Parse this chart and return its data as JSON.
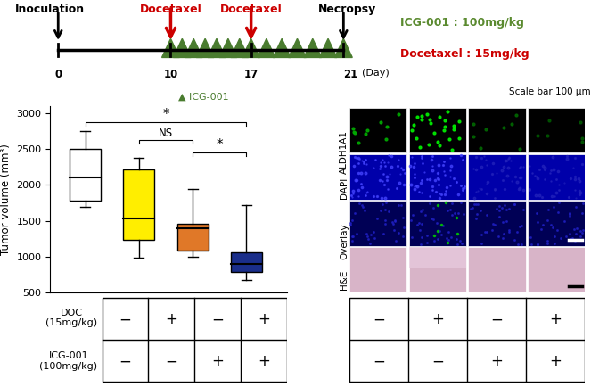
{
  "timeline": {
    "inoculation_label": "Inoculation",
    "necropsy_label": "Necropsy",
    "docetaxel_label": "Docetaxel",
    "icg_label": "ICG-001",
    "triangle_color": "#4a7c2f",
    "docetaxel_color": "#cc0000"
  },
  "legend": {
    "icg_text": "ICG-001 : 100mg/kg",
    "doc_text": "Docetaxel : 15mg/kg",
    "icg_color": "#5a8a2f",
    "doc_color": "#cc0000"
  },
  "boxplot": {
    "colors": [
      "#ffffff",
      "#ffee00",
      "#e07828",
      "#1a2e8a"
    ],
    "edge_color": "#000000",
    "medians": [
      2100,
      1530,
      1400,
      900
    ],
    "q1": [
      1780,
      1230,
      1080,
      780
    ],
    "q3": [
      2500,
      2220,
      1460,
      1060
    ],
    "whisker_lo": [
      1690,
      980,
      1000,
      670
    ],
    "whisker_hi": [
      2750,
      2380,
      1940,
      1720
    ],
    "ylabel": "Tumor volume (mm³)",
    "ylim": [
      500,
      3100
    ],
    "yticks": [
      500,
      1000,
      1500,
      2000,
      2500,
      3000
    ],
    "doc_labels": [
      "−",
      "+",
      "−",
      "+"
    ],
    "icg_labels": [
      "−",
      "−",
      "+",
      "+"
    ],
    "doc_row_label": "DOC\n(15mg/kg)",
    "icg_row_label": "ICG-001\n(100mg/kg)"
  },
  "microscopy": {
    "row_labels": [
      "ALDH1A1",
      "DAPI",
      "Overlay",
      "H&E"
    ],
    "scale_bar_text": "Scale bar 100 μm",
    "aldh1a1_bg": "#000000",
    "dapi_bg": "#0000aa",
    "overlay_bg": "#000055",
    "he_bg": "#d8b4c8",
    "aldh1a1_dots_col1": "#00dd00",
    "aldh1a1_dots_col0": "#005500",
    "aldh1a1_dots_col2": "#004400",
    "aldh1a1_dots_col3": "#003300"
  },
  "background_color": "#ffffff"
}
